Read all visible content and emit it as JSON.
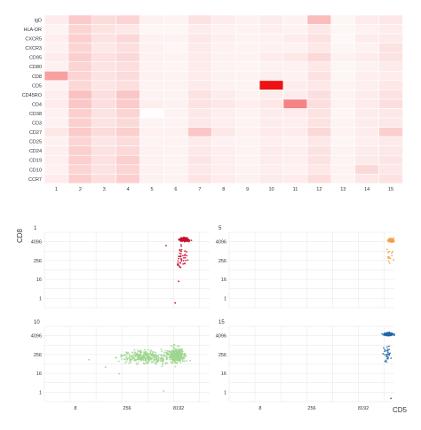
{
  "colors": {
    "heat_low": "#ffffff",
    "heat_high": "#ee1111",
    "panel_bg": "#ffffff",
    "grid": "#e6e6e6",
    "cluster_1": "#c8102e",
    "cluster_5": "#f4a04c",
    "cluster_10": "#9fd68f",
    "cluster_15": "#1f66a8"
  },
  "chart_data": [
    {
      "type": "heatmap",
      "title": "",
      "xlabel": "",
      "ylabel": "",
      "x_categories": [
        "1",
        "2",
        "3",
        "4",
        "5",
        "6",
        "7",
        "8",
        "9",
        "10",
        "11",
        "12",
        "13",
        "14",
        "15"
      ],
      "y_categories": [
        "IgD",
        "HLA-DR",
        "CXCR5",
        "CXCR3",
        "CD95",
        "CD80",
        "CD8",
        "CD5",
        "CD45RO",
        "CD4",
        "CD38",
        "CD3",
        "CD27",
        "CD25",
        "CD24",
        "CD19",
        "CD10",
        "CCR7"
      ],
      "value_range": [
        0,
        1
      ],
      "values": [
        [
          0.08,
          0.22,
          0.15,
          0.18,
          0.06,
          0.05,
          0.12,
          0.08,
          0.06,
          0.08,
          0.06,
          0.28,
          0.04,
          0.08,
          0.1
        ],
        [
          0.05,
          0.18,
          0.12,
          0.1,
          0.04,
          0.04,
          0.08,
          0.06,
          0.05,
          0.07,
          0.05,
          0.1,
          0.04,
          0.06,
          0.08
        ],
        [
          0.07,
          0.2,
          0.12,
          0.16,
          0.06,
          0.05,
          0.1,
          0.07,
          0.05,
          0.06,
          0.08,
          0.12,
          0.03,
          0.08,
          0.09
        ],
        [
          0.06,
          0.18,
          0.1,
          0.14,
          0.06,
          0.04,
          0.09,
          0.06,
          0.05,
          0.06,
          0.06,
          0.1,
          0.04,
          0.06,
          0.12
        ],
        [
          0.08,
          0.2,
          0.13,
          0.16,
          0.06,
          0.05,
          0.09,
          0.06,
          0.05,
          0.08,
          0.1,
          0.16,
          0.06,
          0.08,
          0.12
        ],
        [
          0.06,
          0.18,
          0.12,
          0.14,
          0.05,
          0.04,
          0.08,
          0.05,
          0.04,
          0.06,
          0.06,
          0.1,
          0.04,
          0.06,
          0.09
        ],
        [
          0.4,
          0.18,
          0.12,
          0.15,
          0.06,
          0.05,
          0.08,
          0.06,
          0.05,
          0.07,
          0.06,
          0.12,
          0.04,
          0.07,
          0.08
        ],
        [
          0.06,
          0.17,
          0.11,
          0.14,
          0.05,
          0.05,
          0.09,
          0.06,
          0.05,
          1.0,
          0.08,
          0.1,
          0.05,
          0.07,
          0.1
        ],
        [
          0.07,
          0.26,
          0.14,
          0.24,
          0.06,
          0.05,
          0.12,
          0.08,
          0.06,
          0.08,
          0.08,
          0.14,
          0.05,
          0.08,
          0.12
        ],
        [
          0.08,
          0.24,
          0.14,
          0.22,
          0.07,
          0.06,
          0.12,
          0.1,
          0.07,
          0.1,
          0.52,
          0.14,
          0.05,
          0.09,
          0.14
        ],
        [
          0.06,
          0.2,
          0.12,
          0.18,
          0.01,
          0.05,
          0.1,
          0.07,
          0.05,
          0.08,
          0.08,
          0.12,
          0.04,
          0.08,
          0.1
        ],
        [
          0.06,
          0.2,
          0.12,
          0.16,
          0.05,
          0.05,
          0.1,
          0.07,
          0.05,
          0.08,
          0.07,
          0.12,
          0.05,
          0.08,
          0.1
        ],
        [
          0.1,
          0.22,
          0.15,
          0.2,
          0.06,
          0.06,
          0.24,
          0.1,
          0.06,
          0.09,
          0.08,
          0.16,
          0.05,
          0.08,
          0.2
        ],
        [
          0.06,
          0.18,
          0.11,
          0.15,
          0.05,
          0.05,
          0.09,
          0.06,
          0.05,
          0.07,
          0.06,
          0.1,
          0.04,
          0.07,
          0.09
        ],
        [
          0.07,
          0.2,
          0.12,
          0.16,
          0.06,
          0.05,
          0.1,
          0.07,
          0.05,
          0.08,
          0.07,
          0.12,
          0.05,
          0.08,
          0.1
        ],
        [
          0.07,
          0.2,
          0.13,
          0.2,
          0.06,
          0.05,
          0.11,
          0.07,
          0.05,
          0.08,
          0.07,
          0.12,
          0.05,
          0.09,
          0.11
        ],
        [
          0.06,
          0.18,
          0.12,
          0.18,
          0.06,
          0.05,
          0.1,
          0.07,
          0.05,
          0.07,
          0.06,
          0.1,
          0.05,
          0.16,
          0.1
        ],
        [
          0.08,
          0.2,
          0.14,
          0.2,
          0.06,
          0.05,
          0.11,
          0.08,
          0.06,
          0.09,
          0.08,
          0.14,
          0.05,
          0.1,
          0.12
        ]
      ]
    },
    {
      "type": "scatter",
      "title": "",
      "xlabel": "CD5",
      "ylabel": "CD8",
      "x_scale": "log2",
      "y_scale": "log2",
      "xlim": [
        1,
        65536
      ],
      "ylim": [
        0.25,
        16384
      ],
      "x_ticks": [
        "8",
        "256",
        "8192"
      ],
      "y_ticks": [
        "1",
        "16",
        "256",
        "4096"
      ],
      "grid": true,
      "facets": [
        {
          "label": "1",
          "color_key": "cluster_1",
          "clusters": [
            {
              "x_center": 12000,
              "y_center": 5600,
              "x_spread": 0.35,
              "y_spread": 0.25,
              "n": 150
            },
            {
              "x_center": 10000,
              "y_center": 350,
              "x_spread": 0.45,
              "y_spread": 1.6,
              "n": 40
            }
          ],
          "outliers": [
            [
              3500,
              2300
            ],
            [
              8200,
              12
            ],
            [
              6500,
              0.5
            ]
          ]
        },
        {
          "label": "5",
          "color_key": "cluster_5",
          "clusters": [
            {
              "x_center": 52000,
              "y_center": 5000,
              "x_spread": 0.25,
              "y_spread": 0.3,
              "n": 80
            },
            {
              "x_center": 47000,
              "y_center": 500,
              "x_spread": 0.3,
              "y_spread": 1.3,
              "n": 14
            }
          ],
          "outliers": []
        },
        {
          "label": "10",
          "color_key": "cluster_10",
          "clusters": [
            {
              "x_center": 900,
              "y_center": 180,
              "x_spread": 1.5,
              "y_spread": 0.9,
              "n": 320
            },
            {
              "x_center": 7000,
              "y_center": 220,
              "x_spread": 0.6,
              "y_spread": 1.1,
              "n": 340
            }
          ],
          "outliers": [
            [
              20,
              120
            ],
            [
              60,
              40
            ],
            [
              150,
              15
            ],
            [
              3000,
              1.2
            ]
          ]
        },
        {
          "label": "15",
          "color_key": "cluster_15",
          "clusters": [
            {
              "x_center": 45000,
              "y_center": 5000,
              "x_spread": 0.35,
              "y_spread": 0.25,
              "n": 110
            },
            {
              "x_center": 40000,
              "y_center": 250,
              "x_spread": 0.35,
              "y_spread": 1.3,
              "n": 28
            }
          ],
          "outliers": [
            [
              52000,
              0.4
            ]
          ]
        }
      ]
    }
  ]
}
